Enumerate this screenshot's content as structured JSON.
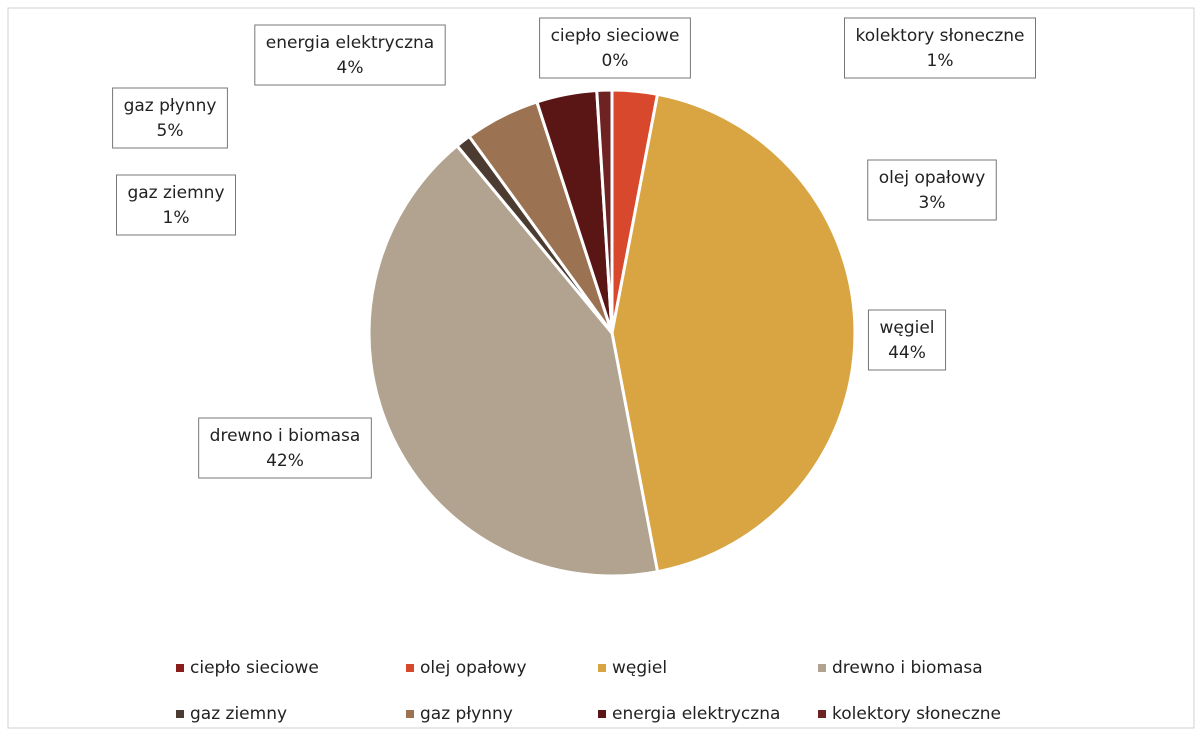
{
  "chart_data": {
    "type": "pie",
    "categories": [
      "ciepło sieciowe",
      "olej opałowy",
      "węgiel",
      "drewno i biomasa",
      "gaz ziemny",
      "gaz płynny",
      "energia elektryczna",
      "kolektory słoneczne"
    ],
    "values": [
      0,
      3,
      44,
      42,
      1,
      5,
      4,
      1
    ],
    "value_labels": [
      "0%",
      "3%",
      "44%",
      "42%",
      "1%",
      "5%",
      "4%",
      "1%"
    ],
    "colors": [
      "#8a1c1c",
      "#d8482c",
      "#d9a442",
      "#b1a38f",
      "#4b3b31",
      "#9b7352",
      "#5a1515",
      "#6e2222"
    ],
    "legend": "bottom"
  }
}
